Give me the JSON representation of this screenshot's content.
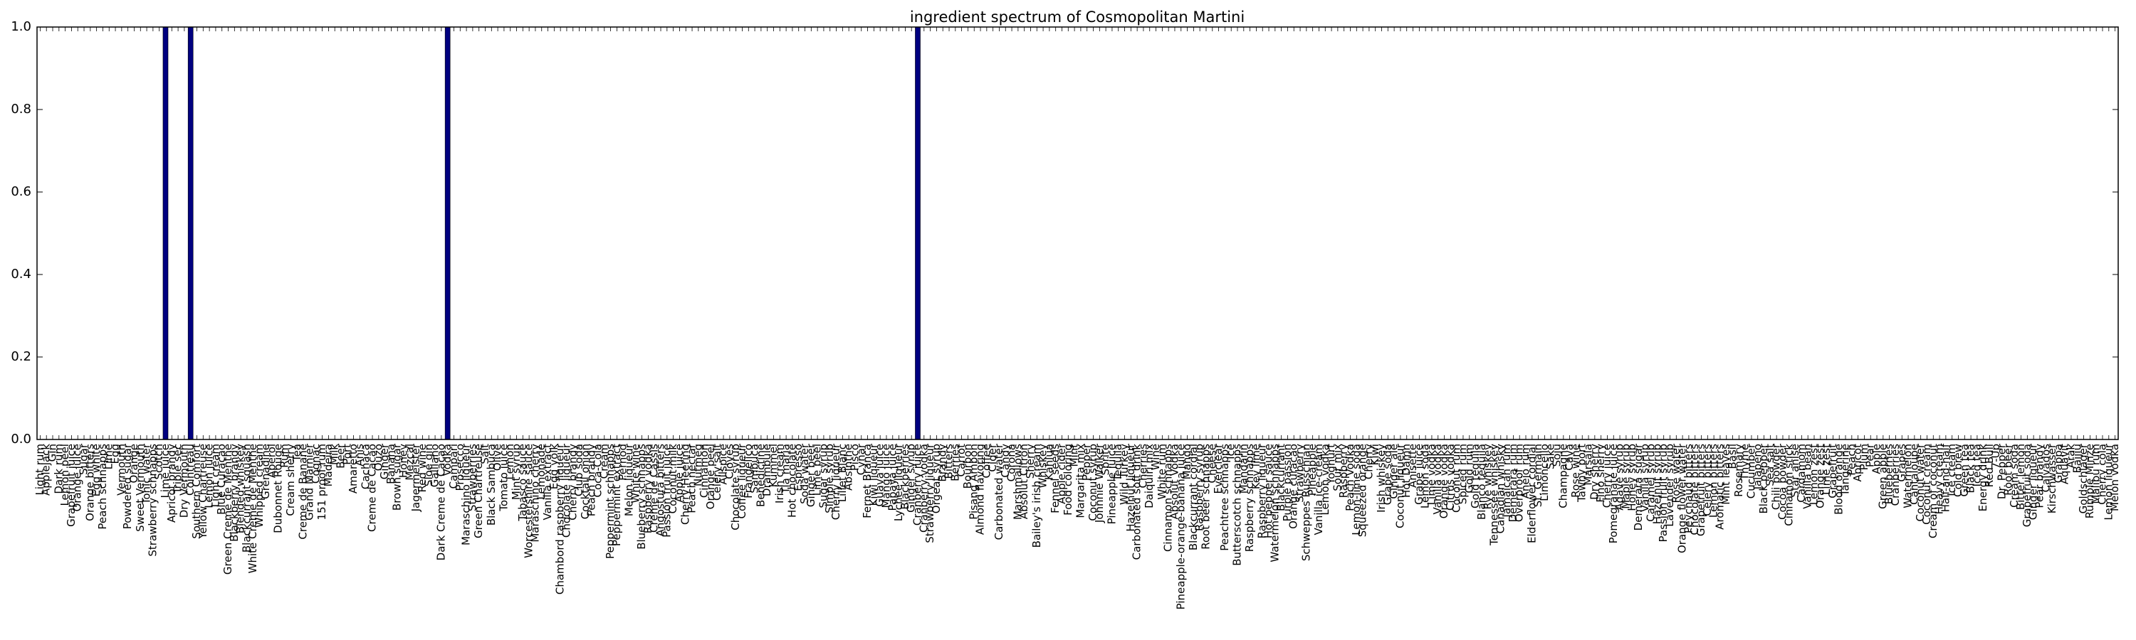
{
  "chart_data": {
    "type": "bar",
    "title": "ingredient spectrum of Cosmopolitan Martini",
    "categories": [
      "Light rum",
      "Applejack",
      "Gin",
      "Dark rum",
      "Lemon peel",
      "Grapefruit juice",
      "Orange juice",
      "Sugar",
      "Orange bitters",
      "Egg white",
      "Peach schnapps",
      "Lime",
      "Egg",
      "Vermouth",
      "Powdered sugar",
      "Orange",
      "Sweet Vermouth",
      "Tonic water",
      "Strawberry schnapps",
      "Scotch",
      "Lime juice",
      "Apricot brandy",
      "Triple sec",
      "Dry Vermouth",
      "Cointreau",
      "Southern Comfort",
      "Yellow Chartreuse",
      "Lemon juice",
      "Light cream",
      "Blue Curacao",
      "Green Creme de Menthe",
      "Blackberry brandy",
      "Blended whiskey",
      "Blackcurrant squash",
      "White Creme de Menthe",
      "Whipped cream",
      "Grenadine",
      "Aperol",
      "Dubonnet Rouge",
      "Rum",
      "Cream sherry",
      "Tea",
      "Creme de Banane",
      "Grand Marnier",
      "Cognac",
      "151 proof rum",
      "Madeira",
      "Milk",
      "Beer",
      "Port",
      "Amaretto",
      "Anis",
      "Cachaca",
      "Creme de Cacao",
      "Ouzo",
      "Ginger",
      "Banana",
      "Brown sugar",
      "Honey",
      "Mezcal",
      "Jagermeister",
      "Red wine",
      "Sloe gin",
      "Galliano",
      "Dark Creme de Cacao",
      "Vodka",
      "Campari",
      "Prosecco",
      "Maraschino liqueur",
      "Strawberries",
      "Green Chartreuse",
      "Salt",
      "Black Sambuca",
      "Olive",
      "Tomato juice",
      "Lemon",
      "Mint syrup",
      "Tabasco sauce",
      "Worcestershire sauce",
      "Maraschino cherry",
      "Lemonade",
      "Vanilla extract",
      "Egg yolk",
      "Chambord raspberry liqueur",
      "Chocolate liqueur",
      "Cherry brandy",
      "Club soda",
      "Cocktail onion",
      "Peach brandy",
      "Coca-Cola",
      "Cream",
      "Peppermint schnapps",
      "Peppermint extract",
      "Pernod",
      "Melon liqueur",
      "White wine",
      "Blueberry schnapps",
      "Raspberry vodka",
      "Creme de Cassis",
      "Angostura bitters",
      "Passion fruit juice",
      "Coconut milk",
      "Apple juice",
      "Cherry Heering",
      "Peach nectar",
      "Nutmeg",
      "Cinnamon",
      "Orange peel",
      "Celery salt",
      "Allspice",
      "Cloves",
      "Chocolate syrup",
      "Coffee liqueur",
      "Frangelico",
      "Sambuca",
      "Benedictine",
      "Drambuie",
      "Kummel",
      "Irish cream",
      "Tia maria",
      "Hot chocolate",
      "Espresso",
      "Soda water",
      "Ginger beer",
      "Lime peel",
      "Sugar syrup",
      "Simple syrup",
      "Cherry liqueur",
      "Lillet Blanc",
      "Absinthe",
      "Pisco",
      "Cynar",
      "Fernet Branca",
      "Kiwi liqueur",
      "Guava juice",
      "Mango juice",
      "Papaya juice",
      "Lychee liqueur",
      "Blackberries",
      "Ginger syrup",
      "Cranberry juice",
      "Cranberry vodka",
      "Strawberry liqueur",
      "Orgeat syrup",
      "Brandy",
      "Bitters",
      "Berries",
      "Carrot",
      "Bourbon",
      "Pisang Ambon",
      "Almond flavoring",
      "Coffee",
      "Cider",
      "Carbonated water",
      "Candy",
      "Corona",
      "Marshmallows",
      "Absolut Citron",
      "Sherry",
      "Bailey's irish cream",
      "Whiskey",
      "Kahlua",
      "Fennel seeds",
      "Apple cider",
      "Food coloring",
      "Mint",
      "Margarita mix",
      "Pepper",
      "Coconut syrup",
      "Johnnie Walker",
      "Sprite",
      "Pineapple juice",
      "Tequila",
      "Wild Turkey",
      "Hazelnut liqueur",
      "Carbonated soft drink",
      "Cherries",
      "Daiquiri mix",
      "Wine",
      "White rum",
      "Cinnamon schnapps",
      "Absolut Vodka",
      "Pineapple-orange-banana juice",
      "Mango",
      "Blackcurrant cordial",
      "Raspberry syrup",
      "Root beer schnapps",
      "Cheese",
      "Everclear",
      "Peachtree schnapps",
      "Ice",
      "Butterscotch schnapps",
      "Mandarin",
      "Raspberry schnapps",
      "Key lime",
      "Raspberry liqueur",
      "Hot pepper sauce",
      "Watermelon schnapps",
      "Blackcurrant",
      "Purple passion",
      "Orange curacao",
      "Strawberry",
      "Schweppes Russchian",
      "Pineapple",
      "Vanilla ice-cream",
      "Lemon vodka",
      "Yoghurt",
      "Sour mix",
      "Raspberry",
      "Peach Vodka",
      "Lemon-lime soda",
      "Squeezed orange",
      "Cherry",
      "Kiwi",
      "Irish whiskey",
      "Grape soda",
      "Ginger ale",
      "Coconut liqueur",
      "Hot Damn",
      "Anisette",
      "Grape juice",
      "Lemon soda",
      "Lime vodka",
      "Vanilla vodka",
      "Orange vodka",
      "Citrus vodka",
      "Coconut rum",
      "Spiced rum",
      "Gold rum",
      "Gold tequila",
      "Blanco tequila",
      "Rye whiskey",
      "Tennessee whiskey",
      "Canadian whisky",
      "Jamaican rum",
      "Demerara rum",
      "Overproof rum",
      "Anejo rum",
      "Elderflower cordial",
      "St. Germain",
      "Limoncello",
      "Sake",
      "Soju",
      "Champagne",
      "Cava",
      "Rose wine",
      "Tawny port",
      "Marsala",
      "Dry sherry",
      "Fino sherry",
      "Cherry juice",
      "Pomegranate juice",
      "Agave syrup",
      "Maple syrup",
      "Honey syrup",
      "Demerara sugar",
      "Vanilla syrup",
      "Caramel syrup",
      "Hazelnut syrup",
      "Passion fruit syrup",
      "Lavender syrup",
      "Rose water",
      "Orange flower water",
      "Peychaud bitters",
      "Chocolate bitters",
      "Grapefruit bitters",
      "Celery bitters",
      "Lemon bitters",
      "Aromatic bitters",
      "Mint leaves",
      "Basil",
      "Rosemary",
      "Thyme",
      "Cucumber",
      "Jalapeno",
      "Black pepper",
      "Sea salt",
      "Chili powder",
      "Cocoa powder",
      "Cinnamon stick",
      "Star anise",
      "Cardamom",
      "Vanilla bean",
      "Lemon zest",
      "Orange zest",
      "Lime zest",
      "Grapefruit",
      "Blood orange",
      "Tangerine",
      "Peach",
      "Apricot",
      "Plum",
      "Pear",
      "Apple",
      "Green apple",
      "Blueberries",
      "Cranberries",
      "Grapes",
      "Watermelon",
      "Cantaloupe",
      "Coconut water",
      "Coconut cream",
      "Cream of coconut",
      "Heavy cream",
      "Half-and-half",
      "Ice cream",
      "Cold brew",
      "Green tea",
      "Black tea",
      "Iced tea",
      "Energy drink",
      "Red Bull",
      "7-Up",
      "Dr. Pepper",
      "Root beer",
      "Cream soda",
      "Bitter lemon",
      "Grapefruit soda",
      "Ginger liqueur",
      "Pear brandy",
      "Calvados",
      "Kirschwasser",
      "Grappa",
      "Aquavit",
      "Arak",
      "Baijiu",
      "Goldschlager",
      "Rumple Minze",
      "Malibu rum",
      "Cherry cola",
      "Lemon liqueur",
      "Melon vodka"
    ],
    "values": [
      0,
      0,
      0,
      0,
      0,
      0,
      0,
      0,
      0,
      0,
      0,
      0,
      0,
      0,
      0,
      0,
      0,
      0,
      0,
      0,
      1,
      0,
      0,
      0,
      1,
      0,
      0,
      0,
      0,
      0,
      0,
      0,
      0,
      0,
      0,
      0,
      0,
      0,
      0,
      0,
      0,
      0,
      0,
      0,
      0,
      0,
      0,
      0,
      0,
      0,
      0,
      0,
      0,
      0,
      0,
      0,
      0,
      0,
      0,
      0,
      0,
      0,
      0,
      0,
      0,
      1,
      0,
      0,
      0,
      0,
      0,
      0,
      0,
      0,
      0,
      0,
      0,
      0,
      0,
      0,
      0,
      0,
      0,
      0,
      0,
      0,
      0,
      0,
      0,
      0,
      0,
      0,
      0,
      0,
      0,
      0,
      0,
      0,
      0,
      0,
      0,
      0,
      0,
      0,
      0,
      0,
      0,
      0,
      0,
      0,
      0,
      0,
      0,
      0,
      0,
      0,
      0,
      0,
      0,
      0,
      0,
      0,
      0,
      0,
      0,
      0,
      0,
      0,
      0,
      0,
      0,
      0,
      0,
      0,
      0,
      0,
      0,
      0,
      0,
      0,
      1,
      0,
      0,
      0,
      0,
      0,
      0,
      0,
      0,
      0,
      0,
      0,
      0,
      0,
      0,
      0,
      0,
      0,
      0,
      0,
      0,
      0,
      0,
      0,
      0,
      0,
      0,
      0,
      0,
      0,
      0,
      0,
      0,
      0,
      0,
      0,
      0,
      0,
      0,
      0,
      0,
      0,
      0,
      0,
      0,
      0,
      0,
      0,
      0,
      0,
      0,
      0,
      0,
      0,
      0,
      0,
      0,
      0,
      0,
      0,
      0,
      0,
      0,
      0,
      0,
      0,
      0,
      0,
      0,
      0,
      0,
      0,
      0,
      0,
      0,
      0,
      0,
      0,
      0,
      0,
      0,
      0,
      0,
      0,
      0,
      0,
      0,
      0,
      0,
      0,
      0,
      0,
      0,
      0,
      0,
      0,
      0,
      0,
      0,
      0,
      0,
      0,
      0,
      0,
      0,
      0,
      0,
      0,
      0,
      0,
      0,
      0,
      0,
      0,
      0,
      0,
      0,
      0,
      0,
      0,
      0,
      0,
      0,
      0,
      0,
      0,
      0,
      0,
      0,
      0,
      0,
      0,
      0,
      0,
      0,
      0,
      0,
      0,
      0,
      0,
      0,
      0,
      0,
      0,
      0,
      0,
      0,
      0,
      0,
      0,
      0,
      0,
      0,
      0,
      0,
      0,
      0,
      0,
      0,
      0,
      0,
      0,
      0,
      0,
      0,
      0,
      0,
      0,
      0,
      0,
      0,
      0,
      0,
      0,
      0,
      0,
      0,
      0,
      0,
      0,
      0,
      0,
      0,
      0,
      0,
      0,
      0,
      0,
      0,
      0,
      0,
      0
    ],
    "color": "#000080",
    "ylim": [
      0,
      1
    ],
    "yticks": [
      {
        "value": 0,
        "label": "0.0"
      },
      {
        "value": 0.2,
        "label": "0.2"
      },
      {
        "value": 0.4,
        "label": "0.4"
      },
      {
        "value": 0.6,
        "label": "0.6"
      },
      {
        "value": 0.8,
        "label": "0.8"
      },
      {
        "value": 1,
        "label": "1.0"
      }
    ],
    "grid": false
  }
}
